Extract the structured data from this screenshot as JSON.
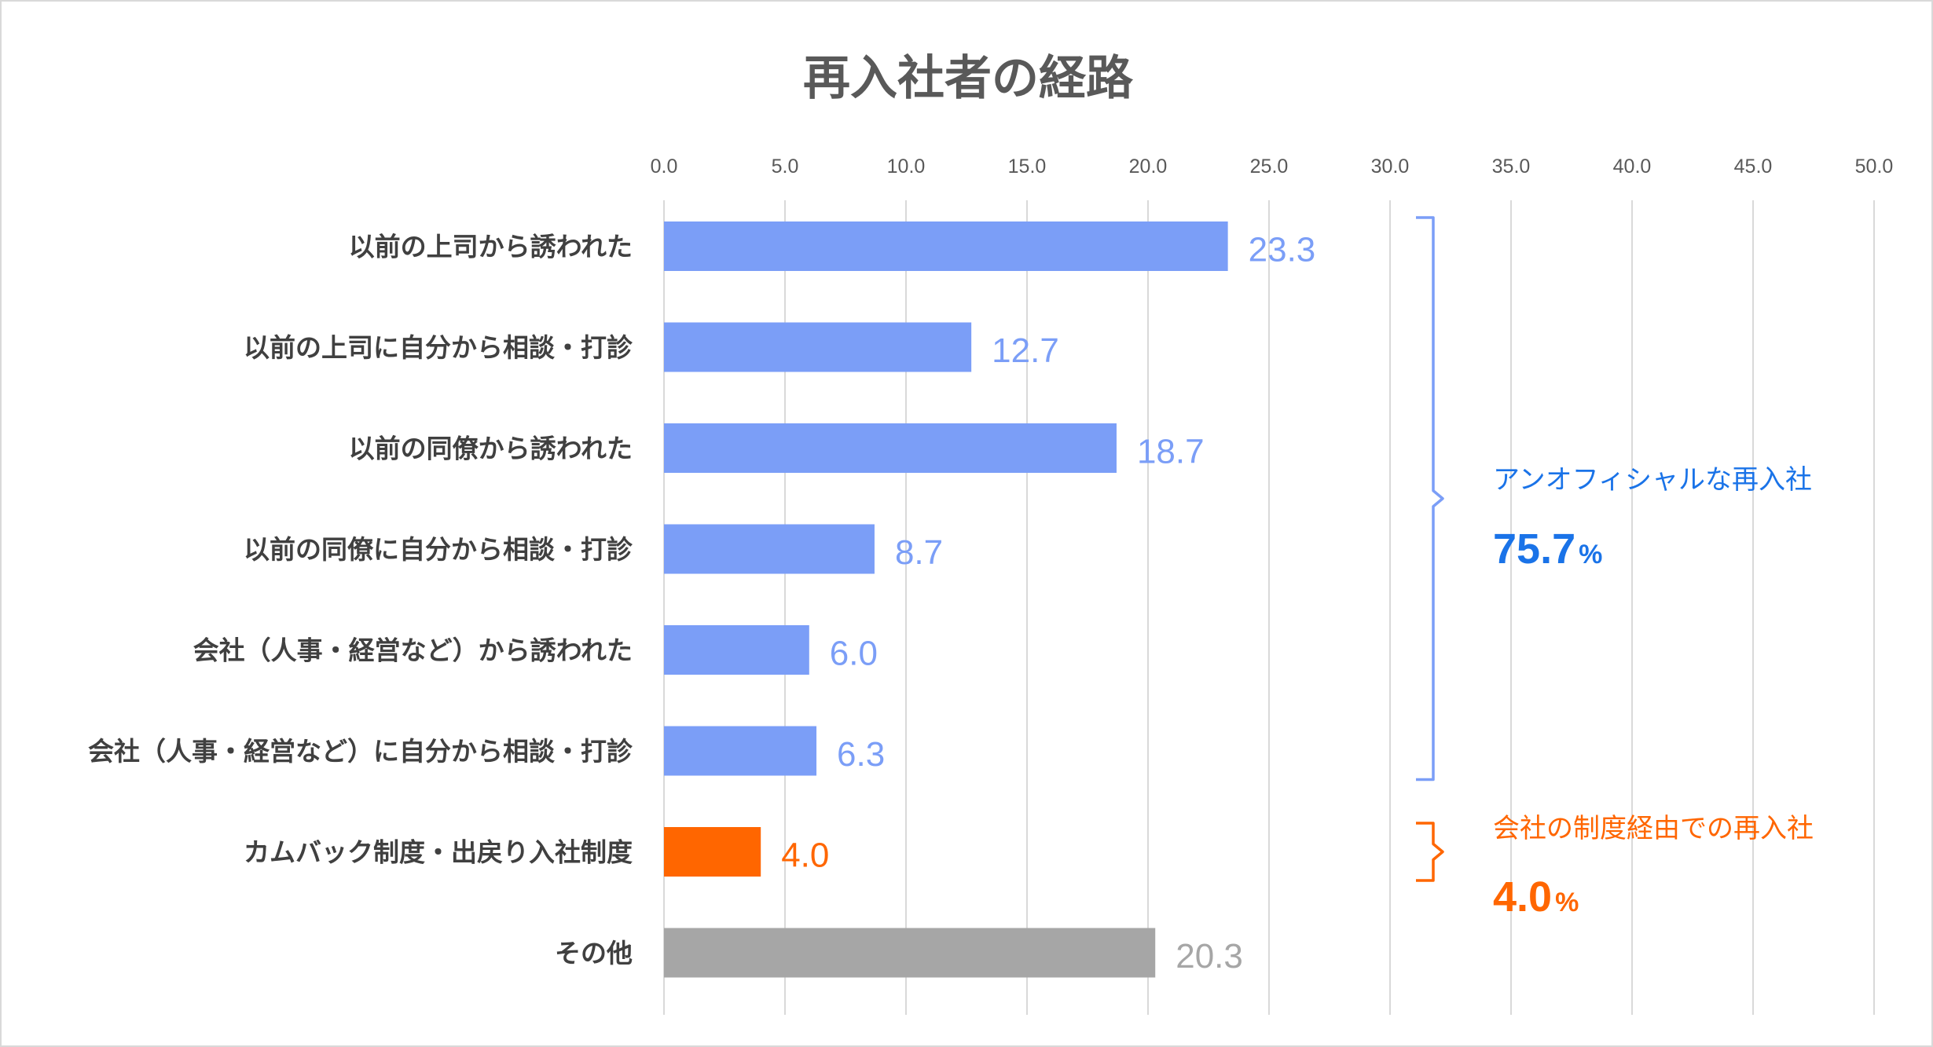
{
  "chart_data": {
    "type": "bar",
    "orientation": "horizontal",
    "title": "再入社者の経路",
    "categories": [
      "以前の上司から誘われた",
      "以前の上司に自分から相談・打診",
      "以前の同僚から誘われた",
      "以前の同僚に自分から相談・打診",
      "会社（人事・経営など）から誘われた",
      "会社（人事・経営など）に自分から相談・打診",
      "カムバック制度・出戻り入社制度",
      "その他"
    ],
    "values": [
      23.3,
      12.7,
      18.7,
      8.7,
      6.0,
      6.3,
      4.0,
      20.3
    ],
    "value_labels": [
      "23.3",
      "12.7",
      "18.7",
      "8.7",
      "6.0",
      "6.3",
      "4.0",
      "20.3"
    ],
    "bar_colors": [
      "#7b9ef7",
      "#7b9ef7",
      "#7b9ef7",
      "#7b9ef7",
      "#7b9ef7",
      "#7b9ef7",
      "#ff6600",
      "#a6a6a6"
    ],
    "label_colors": [
      "#7b9ef7",
      "#7b9ef7",
      "#7b9ef7",
      "#7b9ef7",
      "#7b9ef7",
      "#7b9ef7",
      "#ff6600",
      "#a6a6a6"
    ],
    "xlim": [
      0,
      50
    ],
    "xticks": [
      "0.0",
      "5.0",
      "10.0",
      "15.0",
      "20.0",
      "25.0",
      "30.0",
      "35.0",
      "40.0",
      "45.0",
      "50.0"
    ],
    "xaxis_position": "top",
    "grid": "vertical",
    "xlabel": "",
    "ylabel": "",
    "annotations": [
      {
        "label": "アンオフィシャルな再入社",
        "value": "75.7",
        "unit": "%",
        "color": "#1a73e8",
        "bracket_color": "#7b9ef7",
        "spans_categories": [
          0,
          5
        ]
      },
      {
        "label": "会社の制度経由での再入社",
        "value": "4.0",
        "unit": "%",
        "color": "#ff6600",
        "bracket_color": "#ff6600",
        "spans_categories": [
          6,
          6
        ]
      }
    ]
  }
}
